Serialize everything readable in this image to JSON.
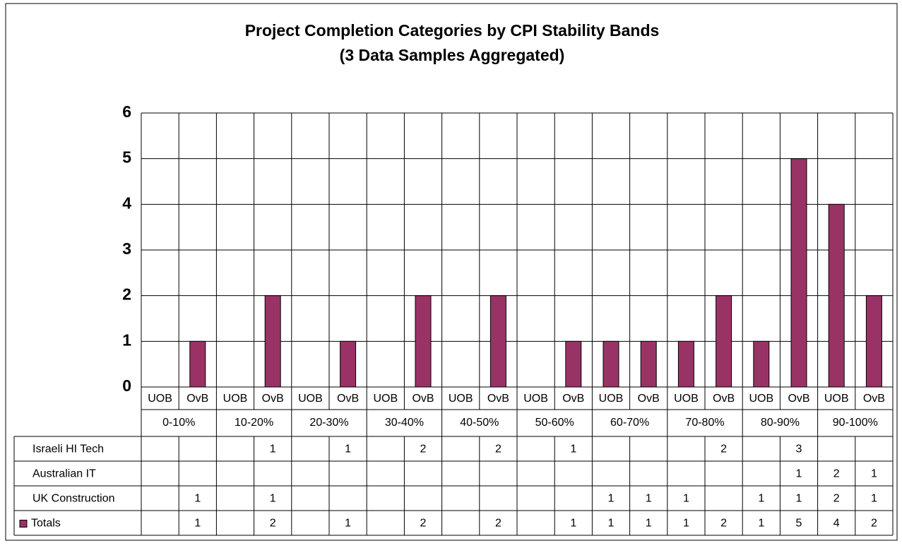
{
  "chart_data": {
    "type": "bar",
    "title": "Project Completion Categories by CPI Stability Bands",
    "subtitle": "(3 Data Samples Aggregated)",
    "categories": [
      "UOB",
      "OvB",
      "UOB",
      "OvB",
      "UOB",
      "OvB",
      "UOB",
      "OvB",
      "UOB",
      "OvB",
      "UOB",
      "OvB",
      "UOB",
      "OvB",
      "UOB",
      "OvB",
      "UOB",
      "OvB",
      "UOB",
      "OvB"
    ],
    "groups": [
      "0-10%",
      "10-20%",
      "20-30%",
      "30-40%",
      "40-50%",
      "50-60%",
      "60-70%",
      "70-80%",
      "80-90%",
      "90-100%"
    ],
    "series": [
      {
        "name": "Totals",
        "color": "#993366",
        "values": [
          null,
          1,
          null,
          2,
          null,
          1,
          null,
          2,
          null,
          2,
          null,
          1,
          1,
          1,
          1,
          2,
          1,
          5,
          4,
          2
        ]
      }
    ],
    "data_table": [
      {
        "name": "Israeli HI Tech",
        "values": [
          null,
          null,
          null,
          1,
          null,
          1,
          null,
          2,
          null,
          2,
          null,
          1,
          null,
          null,
          null,
          2,
          null,
          3,
          null,
          null
        ]
      },
      {
        "name": "Australian IT",
        "values": [
          null,
          null,
          null,
          null,
          null,
          null,
          null,
          null,
          null,
          null,
          null,
          null,
          null,
          null,
          null,
          null,
          null,
          1,
          2,
          1
        ]
      },
      {
        "name": "UK Construction",
        "values": [
          null,
          1,
          null,
          1,
          null,
          null,
          null,
          null,
          null,
          null,
          null,
          null,
          1,
          1,
          1,
          null,
          1,
          1,
          2,
          1
        ]
      }
    ],
    "ylim": [
      0,
      6
    ],
    "yticks": [
      0,
      1,
      2,
      3,
      4,
      5,
      6
    ],
    "grid": true
  }
}
